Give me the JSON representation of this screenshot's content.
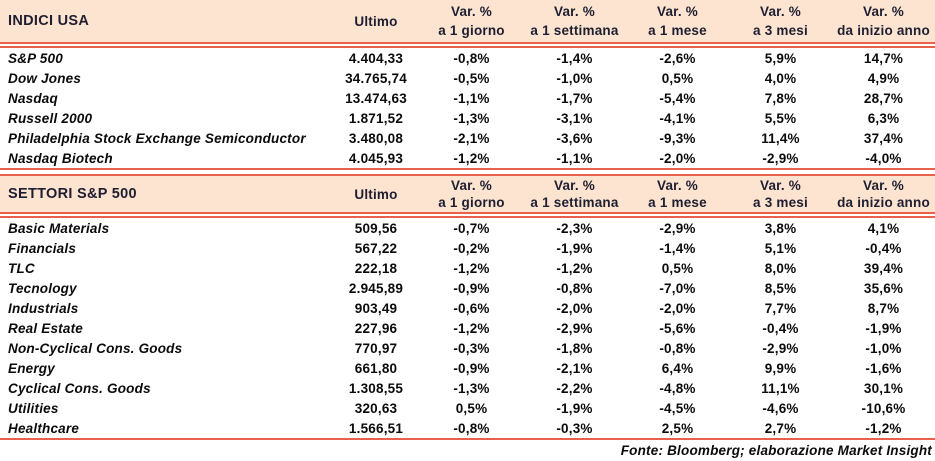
{
  "colors": {
    "band_background": "#fce4d1",
    "rule_red": "#e8614b",
    "header_text": "#1e1e30",
    "body_text": "#0b0b0b"
  },
  "header_labels": {
    "ultimo": "Ultimo",
    "var_pct": "Var. %",
    "periods": [
      "a 1 giorno",
      "a 1 settimana",
      "a 1 mese",
      "a 3 mesi",
      "da inizio anno"
    ]
  },
  "footer": {
    "text": "Fonte: Bloomberg; elaborazione Market Insight"
  },
  "chart_data": [
    {
      "type": "table",
      "title": "INDICI USA",
      "columns": [
        "INDICI USA",
        "Ultimo",
        "Var. % a 1 giorno",
        "Var. % a 1 settimana",
        "Var. % a 1 mese",
        "Var. % a 3 mesi",
        "Var. % da inizio anno"
      ],
      "rows": [
        [
          "S&P 500",
          "4.404,33",
          "-0,8%",
          "-1,4%",
          "-2,6%",
          "5,9%",
          "14,7%"
        ],
        [
          "Dow Jones",
          "34.765,74",
          "-0,5%",
          "-1,0%",
          "0,5%",
          "4,0%",
          "4,9%"
        ],
        [
          "Nasdaq",
          "13.474,63",
          "-1,1%",
          "-1,7%",
          "-5,4%",
          "7,8%",
          "28,7%"
        ],
        [
          "Russell 2000",
          "1.871,52",
          "-1,3%",
          "-3,1%",
          "-4,1%",
          "5,5%",
          "6,3%"
        ],
        [
          "Philadelphia Stock Exchange Semiconductor",
          "3.480,08",
          "-2,1%",
          "-3,6%",
          "-9,3%",
          "11,4%",
          "37,4%"
        ],
        [
          "Nasdaq Biotech",
          "4.045,93",
          "-1,2%",
          "-1,1%",
          "-2,0%",
          "-2,9%",
          "-4,0%"
        ]
      ]
    },
    {
      "type": "table",
      "title": "SETTORI S&P 500",
      "columns": [
        "SETTORI S&P 500",
        "Ultimo",
        "Var. % a 1 giorno",
        "Var. % a 1 settimana",
        "Var. % a 1 mese",
        "Var. % a 3 mesi",
        "Var. % da inizio anno"
      ],
      "rows": [
        [
          "Basic Materials",
          "509,56",
          "-0,7%",
          "-2,3%",
          "-2,9%",
          "3,8%",
          "4,1%"
        ],
        [
          "Financials",
          "567,22",
          "-0,2%",
          "-1,9%",
          "-1,4%",
          "5,1%",
          "-0,4%"
        ],
        [
          "TLC",
          "222,18",
          "-1,2%",
          "-1,2%",
          "0,5%",
          "8,0%",
          "39,4%"
        ],
        [
          "Tecnology",
          "2.945,89",
          "-0,9%",
          "-0,8%",
          "-7,0%",
          "8,5%",
          "35,6%"
        ],
        [
          "Industrials",
          "903,49",
          "-0,6%",
          "-2,0%",
          "-2,0%",
          "7,7%",
          "8,7%"
        ],
        [
          "Real Estate",
          "227,96",
          "-1,2%",
          "-2,9%",
          "-5,6%",
          "-0,4%",
          "-1,9%"
        ],
        [
          "Non-Cyclical Cons. Goods",
          "770,97",
          "-0,3%",
          "-1,8%",
          "-0,8%",
          "-2,9%",
          "-1,0%"
        ],
        [
          "Energy",
          "661,80",
          "-0,9%",
          "-2,1%",
          "6,4%",
          "9,9%",
          "-1,6%"
        ],
        [
          "Cyclical Cons. Goods",
          "1.308,55",
          "-1,3%",
          "-2,2%",
          "-4,8%",
          "11,1%",
          "30,1%"
        ],
        [
          "Utilities",
          "320,63",
          "0,5%",
          "-1,9%",
          "-4,5%",
          "-4,6%",
          "-10,6%"
        ],
        [
          "Healthcare",
          "1.566,51",
          "-0,8%",
          "-0,3%",
          "2,5%",
          "2,7%",
          "-1,2%"
        ]
      ]
    }
  ]
}
